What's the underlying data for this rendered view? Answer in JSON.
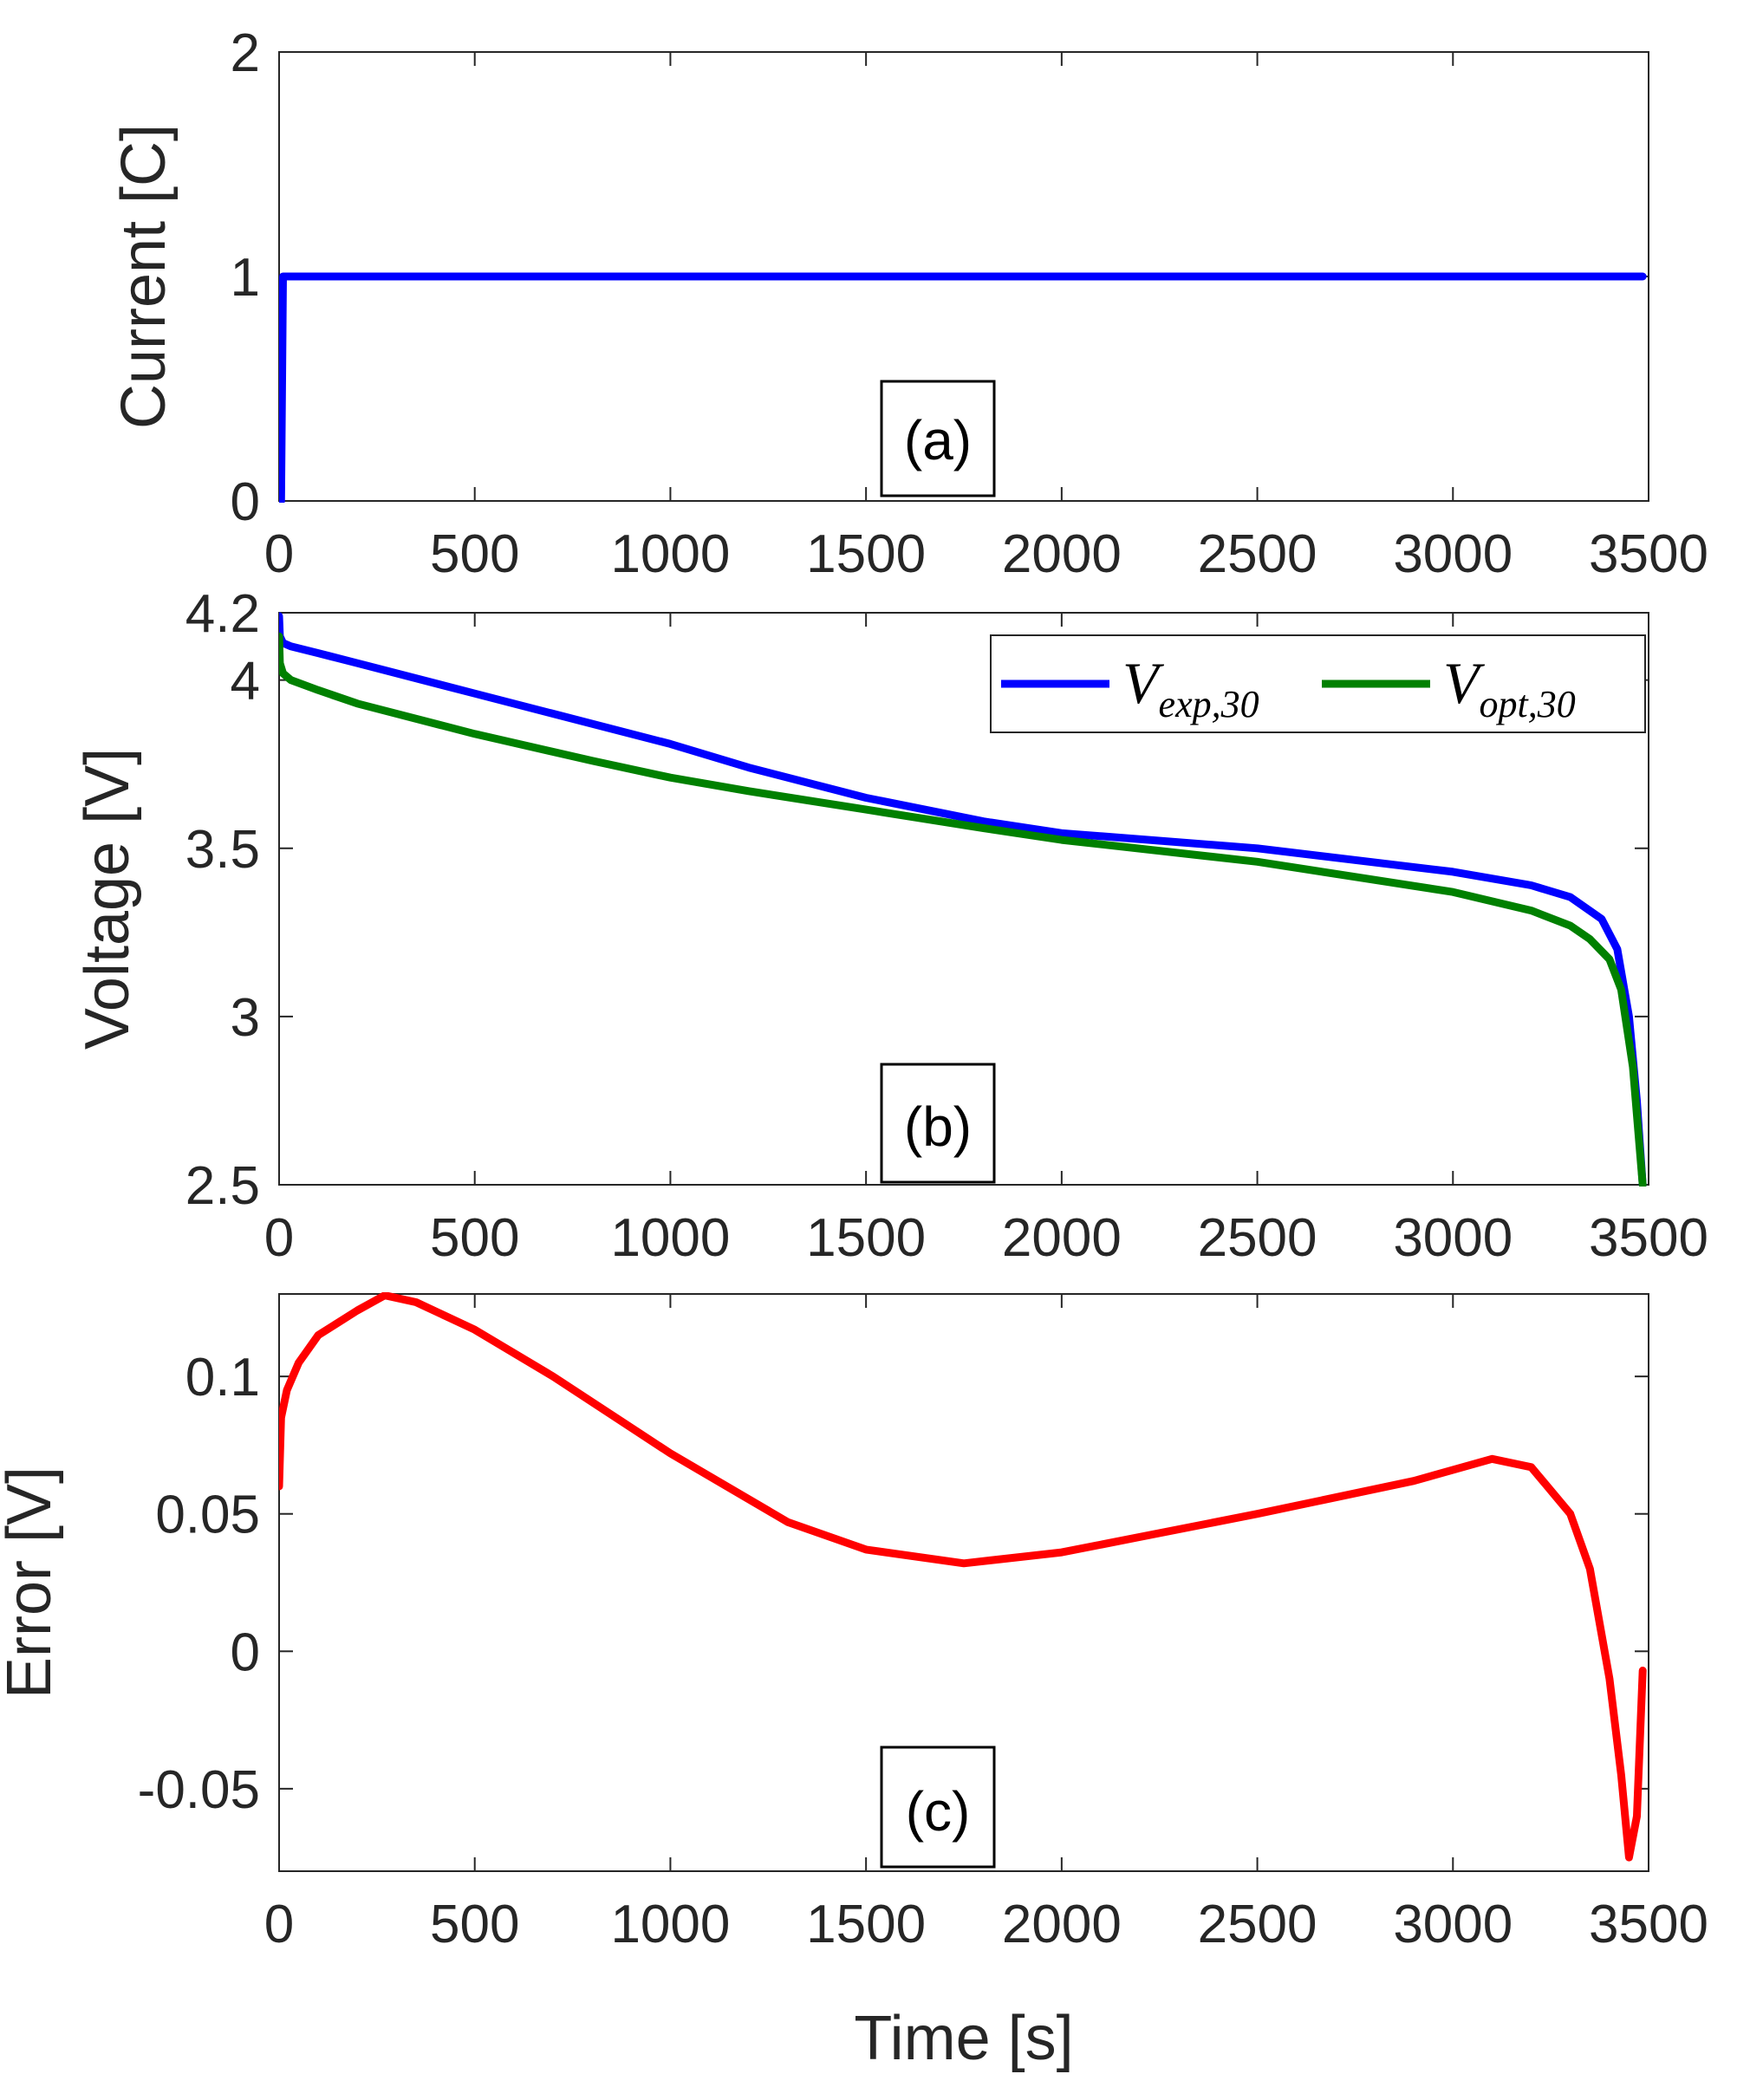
{
  "chart_data": [
    {
      "type": "line",
      "panel_label": "(a)",
      "ylabel": "Current [C]",
      "xlabel": "",
      "xlim": [
        0,
        3500
      ],
      "ylim": [
        0,
        2
      ],
      "xticks": [
        0,
        500,
        1000,
        1500,
        2000,
        2500,
        3000,
        3500
      ],
      "yticks": [
        0,
        1,
        2
      ],
      "xtick_labels": [
        "0",
        "500",
        "1000",
        "1500",
        "2000",
        "2500",
        "3000",
        "3500"
      ],
      "ytick_labels": [
        "0",
        "1",
        "2"
      ],
      "series": [
        {
          "name": "Current",
          "color": "#0000ff",
          "x": [
            0,
            5,
            10,
            3485
          ],
          "y": [
            0,
            0,
            1,
            1
          ]
        }
      ]
    },
    {
      "type": "line",
      "panel_label": "(b)",
      "ylabel": "Voltage [V]",
      "xlabel": "",
      "xlim": [
        0,
        3500
      ],
      "ylim": [
        2.5,
        4.2
      ],
      "xticks": [
        0,
        500,
        1000,
        1500,
        2000,
        2500,
        3000,
        3500
      ],
      "yticks": [
        2.5,
        3,
        3.5,
        4,
        4.2
      ],
      "xtick_labels": [
        "0",
        "500",
        "1000",
        "1500",
        "2000",
        "2500",
        "3000",
        "3500"
      ],
      "ytick_labels": [
        "2.5",
        "3",
        "3.5",
        "4",
        "4.2"
      ],
      "legend_position": "top-right",
      "series": [
        {
          "name": "V_exp,30",
          "legend_main": "V",
          "legend_sub": "exp,30",
          "color": "#0000ff",
          "x": [
            0,
            2,
            10,
            30,
            100,
            200,
            500,
            800,
            1000,
            1200,
            1500,
            1800,
            2000,
            2500,
            3000,
            3200,
            3300,
            3380,
            3420,
            3450,
            3470,
            3485
          ],
          "y": [
            4.19,
            4.13,
            4.11,
            4.1,
            4.08,
            4.05,
            3.96,
            3.87,
            3.81,
            3.74,
            3.65,
            3.58,
            3.545,
            3.5,
            3.43,
            3.39,
            3.355,
            3.29,
            3.2,
            3.0,
            2.75,
            2.5
          ]
        },
        {
          "name": "V_opt,30",
          "legend_main": "V",
          "legend_sub": "opt,30",
          "color": "#008000",
          "x": [
            0,
            2,
            10,
            30,
            100,
            200,
            500,
            800,
            1000,
            1200,
            1500,
            1800,
            2000,
            2500,
            3000,
            3200,
            3300,
            3350,
            3400,
            3430,
            3460,
            3485
          ],
          "y": [
            4.13,
            4.05,
            4.02,
            4.0,
            3.97,
            3.93,
            3.84,
            3.76,
            3.71,
            3.67,
            3.615,
            3.56,
            3.525,
            3.46,
            3.37,
            3.315,
            3.27,
            3.23,
            3.17,
            3.08,
            2.85,
            2.5
          ]
        }
      ]
    },
    {
      "type": "line",
      "panel_label": "(c)",
      "ylabel": "Error [V]",
      "xlabel": "Time [s]",
      "xlim": [
        0,
        3500
      ],
      "ylim": [
        -0.08,
        0.13
      ],
      "xticks": [
        0,
        500,
        1000,
        1500,
        2000,
        2500,
        3000,
        3500
      ],
      "yticks": [
        -0.05,
        0,
        0.05,
        0.1
      ],
      "xtick_labels": [
        "0",
        "500",
        "1000",
        "1500",
        "2000",
        "2500",
        "3000",
        "3500"
      ],
      "ytick_labels": [
        "-0.05",
        "0",
        "0.05",
        "0.1"
      ],
      "series": [
        {
          "name": "Error",
          "color": "#ff0000",
          "x": [
            0,
            5,
            20,
            50,
            100,
            200,
            270,
            350,
            500,
            700,
            1000,
            1300,
            1500,
            1750,
            2000,
            2500,
            2900,
            3100,
            3200,
            3300,
            3350,
            3400,
            3430,
            3450,
            3470,
            3485
          ],
          "y": [
            0.06,
            0.085,
            0.095,
            0.105,
            0.115,
            0.124,
            0.1295,
            0.127,
            0.117,
            0.1,
            0.072,
            0.047,
            0.037,
            0.032,
            0.036,
            0.05,
            0.062,
            0.07,
            0.067,
            0.05,
            0.03,
            -0.01,
            -0.045,
            -0.075,
            -0.06,
            -0.007
          ]
        }
      ]
    }
  ]
}
